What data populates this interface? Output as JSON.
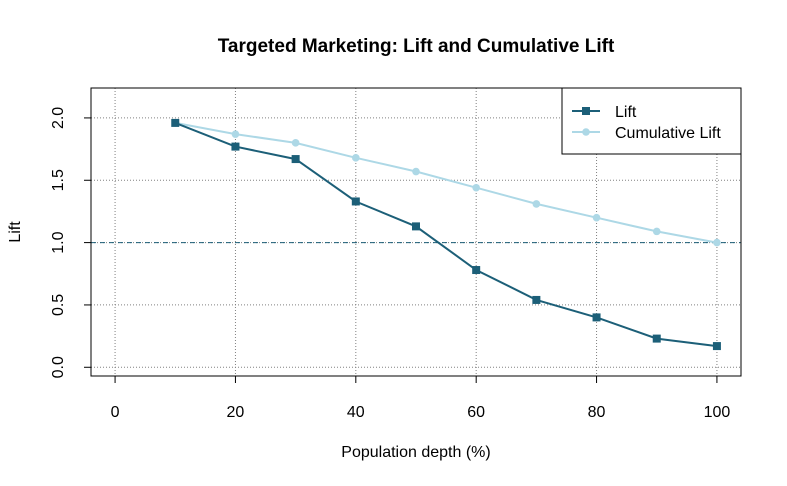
{
  "chart_data": {
    "type": "line",
    "title": "Targeted Marketing: Lift and Cumulative Lift",
    "xlabel": "Population depth (%)",
    "ylabel": "Lift",
    "xlim": [
      -4,
      104
    ],
    "ylim": [
      -0.07,
      2.24
    ],
    "x_ticks": [
      0,
      20,
      40,
      60,
      80,
      100
    ],
    "x_tick_labels": [
      "0",
      "20",
      "40",
      "60",
      "80",
      "100"
    ],
    "y_ticks": [
      0.0,
      0.5,
      1.0,
      1.5,
      2.0
    ],
    "y_tick_labels": [
      "0.0",
      "0.5",
      "1.0",
      "1.5",
      "2.0"
    ],
    "grid": true,
    "reference_line": {
      "y": 1.0,
      "color": "#1c5f78",
      "style": "dashed"
    },
    "legend_position": "top-right",
    "x": [
      10,
      20,
      30,
      40,
      50,
      60,
      70,
      80,
      90,
      100
    ],
    "series": [
      {
        "name": "Lift",
        "color": "#1c5f78",
        "marker": "square",
        "values": [
          1.96,
          1.77,
          1.67,
          1.33,
          1.13,
          0.78,
          0.54,
          0.4,
          0.23,
          0.17
        ]
      },
      {
        "name": "Cumulative Lift",
        "color": "#add8e6",
        "marker": "circle",
        "values": [
          1.96,
          1.87,
          1.8,
          1.68,
          1.57,
          1.44,
          1.31,
          1.2,
          1.09,
          1.0
        ]
      }
    ]
  }
}
